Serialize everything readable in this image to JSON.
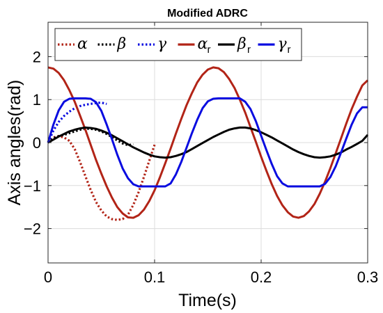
{
  "chart_data": {
    "type": "line",
    "title": "Modified ADRC",
    "xlabel": "Time(s)",
    "ylabel": "Axis angles(rad)",
    "xlim": [
      0,
      0.3
    ],
    "ylim": [
      -2.8,
      2.8
    ],
    "xticks": [
      0,
      0.1,
      0.2,
      0.3
    ],
    "xtick_labels": [
      "0",
      "0.1",
      "0.2",
      "0.3"
    ],
    "yticks": [
      -2,
      -1,
      0,
      1,
      2
    ],
    "ytick_labels": [
      "−2",
      "−1",
      "0",
      "1",
      "2"
    ],
    "grid": true,
    "legend_position": "top",
    "series": [
      {
        "name": "α",
        "sub": "",
        "color": "#b22417",
        "style": "dotted",
        "x": [
          0,
          0.005,
          0.01,
          0.015,
          0.02,
          0.025,
          0.03,
          0.035,
          0.04,
          0.045,
          0.05,
          0.055,
          0.06,
          0.065,
          0.07,
          0.075,
          0.08,
          0.085,
          0.09,
          0.095,
          0.1
        ],
        "y": [
          0,
          0.12,
          0.15,
          0.12,
          0.04,
          -0.15,
          -0.45,
          -0.78,
          -1.1,
          -1.38,
          -1.58,
          -1.72,
          -1.78,
          -1.8,
          -1.78,
          -1.68,
          -1.45,
          -1.15,
          -0.8,
          -0.42,
          -0.05
        ]
      },
      {
        "name": "β",
        "sub": "",
        "color": "#000000",
        "style": "dotted",
        "x": [
          0,
          0.005,
          0.01,
          0.015,
          0.02,
          0.025,
          0.03,
          0.035,
          0.04,
          0.045,
          0.05,
          0.055,
          0.06,
          0.065,
          0.07,
          0.075,
          0.08
        ],
        "y": [
          0,
          0.1,
          0.15,
          0.18,
          0.22,
          0.26,
          0.3,
          0.32,
          0.32,
          0.3,
          0.26,
          0.2,
          0.13,
          0.05,
          -0.02,
          -0.06,
          -0.04
        ]
      },
      {
        "name": "γ",
        "sub": "",
        "color": "#0a0ce0",
        "style": "dotted",
        "x": [
          0,
          0.005,
          0.01,
          0.015,
          0.02,
          0.025,
          0.03,
          0.035,
          0.04,
          0.045,
          0.05,
          0.055
        ],
        "y": [
          0,
          0.28,
          0.48,
          0.62,
          0.72,
          0.8,
          0.85,
          0.88,
          0.9,
          0.92,
          0.93,
          0.9
        ]
      },
      {
        "name": "α",
        "sub": "r",
        "color": "#b22417",
        "style": "solid",
        "x": [
          0,
          0.005,
          0.01,
          0.015,
          0.02,
          0.025,
          0.03,
          0.035,
          0.04,
          0.045,
          0.05,
          0.055,
          0.06,
          0.065,
          0.07,
          0.075,
          0.08,
          0.085,
          0.09,
          0.095,
          0.1,
          0.105,
          0.11,
          0.115,
          0.12,
          0.125,
          0.13,
          0.135,
          0.14,
          0.145,
          0.15,
          0.155,
          0.16,
          0.165,
          0.17,
          0.175,
          0.18,
          0.185,
          0.19,
          0.195,
          0.2,
          0.205,
          0.21,
          0.215,
          0.22,
          0.225,
          0.23,
          0.235,
          0.24,
          0.245,
          0.25,
          0.255,
          0.26,
          0.265,
          0.27,
          0.275,
          0.28,
          0.285,
          0.29,
          0.295,
          0.3
        ],
        "y": [
          1.75,
          1.72,
          1.62,
          1.45,
          1.22,
          0.95,
          0.63,
          0.3,
          -0.05,
          -0.4,
          -0.72,
          -1.02,
          -1.28,
          -1.5,
          -1.65,
          -1.74,
          -1.75,
          -1.69,
          -1.56,
          -1.36,
          -1.11,
          -0.81,
          -0.48,
          -0.14,
          0.21,
          0.55,
          0.87,
          1.15,
          1.4,
          1.58,
          1.7,
          1.75,
          1.73,
          1.64,
          1.48,
          1.27,
          1.0,
          0.7,
          0.36,
          0.02,
          -0.33,
          -0.66,
          -0.97,
          -1.24,
          -1.46,
          -1.62,
          -1.72,
          -1.75,
          -1.71,
          -1.6,
          -1.43,
          -1.19,
          -0.91,
          -0.59,
          -0.25,
          0.1,
          0.45,
          0.78,
          1.07,
          1.33,
          1.45
        ]
      },
      {
        "name": "β",
        "sub": "r",
        "color": "#000000",
        "style": "solid",
        "x": [
          0,
          0.005,
          0.01,
          0.015,
          0.02,
          0.025,
          0.03,
          0.035,
          0.04,
          0.045,
          0.05,
          0.055,
          0.06,
          0.065,
          0.07,
          0.075,
          0.08,
          0.085,
          0.09,
          0.095,
          0.1,
          0.105,
          0.11,
          0.115,
          0.12,
          0.125,
          0.13,
          0.135,
          0.14,
          0.145,
          0.15,
          0.155,
          0.16,
          0.165,
          0.17,
          0.175,
          0.18,
          0.185,
          0.19,
          0.195,
          0.2,
          0.205,
          0.21,
          0.215,
          0.22,
          0.225,
          0.23,
          0.235,
          0.24,
          0.245,
          0.25,
          0.255,
          0.26,
          0.265,
          0.27,
          0.275,
          0.28,
          0.285,
          0.29,
          0.295,
          0.3
        ],
        "y": [
          0,
          0.07,
          0.14,
          0.2,
          0.26,
          0.3,
          0.33,
          0.35,
          0.34,
          0.32,
          0.28,
          0.23,
          0.17,
          0.1,
          0.03,
          -0.04,
          -0.11,
          -0.17,
          -0.23,
          -0.28,
          -0.32,
          -0.34,
          -0.35,
          -0.34,
          -0.31,
          -0.27,
          -0.22,
          -0.15,
          -0.08,
          -0.01,
          0.06,
          0.13,
          0.19,
          0.25,
          0.3,
          0.33,
          0.35,
          0.35,
          0.33,
          0.29,
          0.24,
          0.18,
          0.12,
          0.05,
          -0.02,
          -0.09,
          -0.16,
          -0.22,
          -0.27,
          -0.31,
          -0.34,
          -0.35,
          -0.34,
          -0.32,
          -0.28,
          -0.23,
          -0.16,
          -0.1,
          -0.03,
          0.04,
          0.18
        ]
      },
      {
        "name": "γ",
        "sub": "r",
        "color": "#0a0ce0",
        "style": "solid",
        "x": [
          0,
          0.005,
          0.01,
          0.015,
          0.02,
          0.025,
          0.03,
          0.035,
          0.04,
          0.045,
          0.05,
          0.055,
          0.06,
          0.065,
          0.07,
          0.075,
          0.08,
          0.085,
          0.09,
          0.095,
          0.1,
          0.105,
          0.11,
          0.115,
          0.12,
          0.125,
          0.13,
          0.135,
          0.14,
          0.145,
          0.15,
          0.155,
          0.16,
          0.165,
          0.17,
          0.175,
          0.18,
          0.185,
          0.19,
          0.195,
          0.2,
          0.205,
          0.21,
          0.215,
          0.22,
          0.225,
          0.23,
          0.235,
          0.24,
          0.245,
          0.25,
          0.255,
          0.26,
          0.265,
          0.27,
          0.275,
          0.28,
          0.285,
          0.29,
          0.295,
          0.3
        ],
        "y": [
          0,
          0.42,
          0.75,
          0.95,
          1.02,
          1.03,
          1.03,
          1.03,
          1.02,
          0.94,
          0.74,
          0.42,
          0.08,
          -0.28,
          -0.6,
          -0.83,
          -0.97,
          -1.02,
          -1.02,
          -1.02,
          -1.02,
          -1.02,
          -1.02,
          -0.95,
          -0.74,
          -0.45,
          -0.12,
          0.22,
          0.53,
          0.8,
          0.96,
          1.02,
          1.03,
          1.03,
          1.03,
          1.03,
          1.03,
          0.95,
          0.78,
          0.5,
          0.16,
          -0.18,
          -0.5,
          -0.78,
          -0.95,
          -1.02,
          -1.02,
          -1.02,
          -1.02,
          -1.02,
          -1.02,
          -1.02,
          -0.96,
          -0.8,
          -0.55,
          -0.23,
          0.1,
          0.42,
          0.68,
          0.82,
          0.82
        ]
      }
    ]
  }
}
